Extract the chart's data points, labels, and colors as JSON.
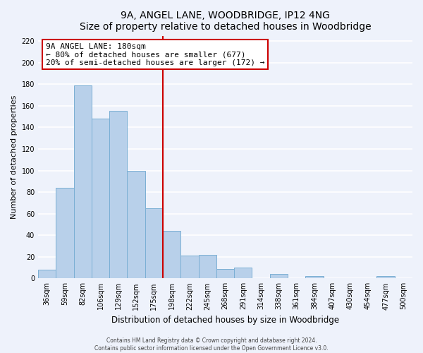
{
  "title": "9A, ANGEL LANE, WOODBRIDGE, IP12 4NG",
  "subtitle": "Size of property relative to detached houses in Woodbridge",
  "xlabel": "Distribution of detached houses by size in Woodbridge",
  "ylabel": "Number of detached properties",
  "bar_labels": [
    "36sqm",
    "59sqm",
    "82sqm",
    "106sqm",
    "129sqm",
    "152sqm",
    "175sqm",
    "198sqm",
    "222sqm",
    "245sqm",
    "268sqm",
    "291sqm",
    "314sqm",
    "338sqm",
    "361sqm",
    "384sqm",
    "407sqm",
    "430sqm",
    "454sqm",
    "477sqm",
    "500sqm"
  ],
  "bar_values": [
    8,
    84,
    179,
    148,
    155,
    100,
    65,
    44,
    21,
    22,
    9,
    10,
    0,
    4,
    0,
    2,
    0,
    0,
    0,
    2,
    0
  ],
  "bar_color": "#b8d0ea",
  "bar_edge_color": "#7bafd4",
  "property_line_color": "#cc0000",
  "ylim": [
    0,
    225
  ],
  "yticks": [
    0,
    20,
    40,
    60,
    80,
    100,
    120,
    140,
    160,
    180,
    200,
    220
  ],
  "annotation_title": "9A ANGEL LANE: 180sqm",
  "annotation_line1": "← 80% of detached houses are smaller (677)",
  "annotation_line2": "20% of semi-detached houses are larger (172) →",
  "annotation_box_color": "#ffffff",
  "annotation_box_edge": "#cc0000",
  "footer1": "Contains HM Land Registry data © Crown copyright and database right 2024.",
  "footer2": "Contains public sector information licensed under the Open Government Licence v3.0.",
  "background_color": "#eef2fb",
  "grid_color": "#ffffff",
  "title_fontsize": 10,
  "subtitle_fontsize": 8.5,
  "tick_fontsize": 7,
  "ylabel_fontsize": 8,
  "xlabel_fontsize": 8.5,
  "annot_fontsize": 8,
  "footer_fontsize": 5.5
}
